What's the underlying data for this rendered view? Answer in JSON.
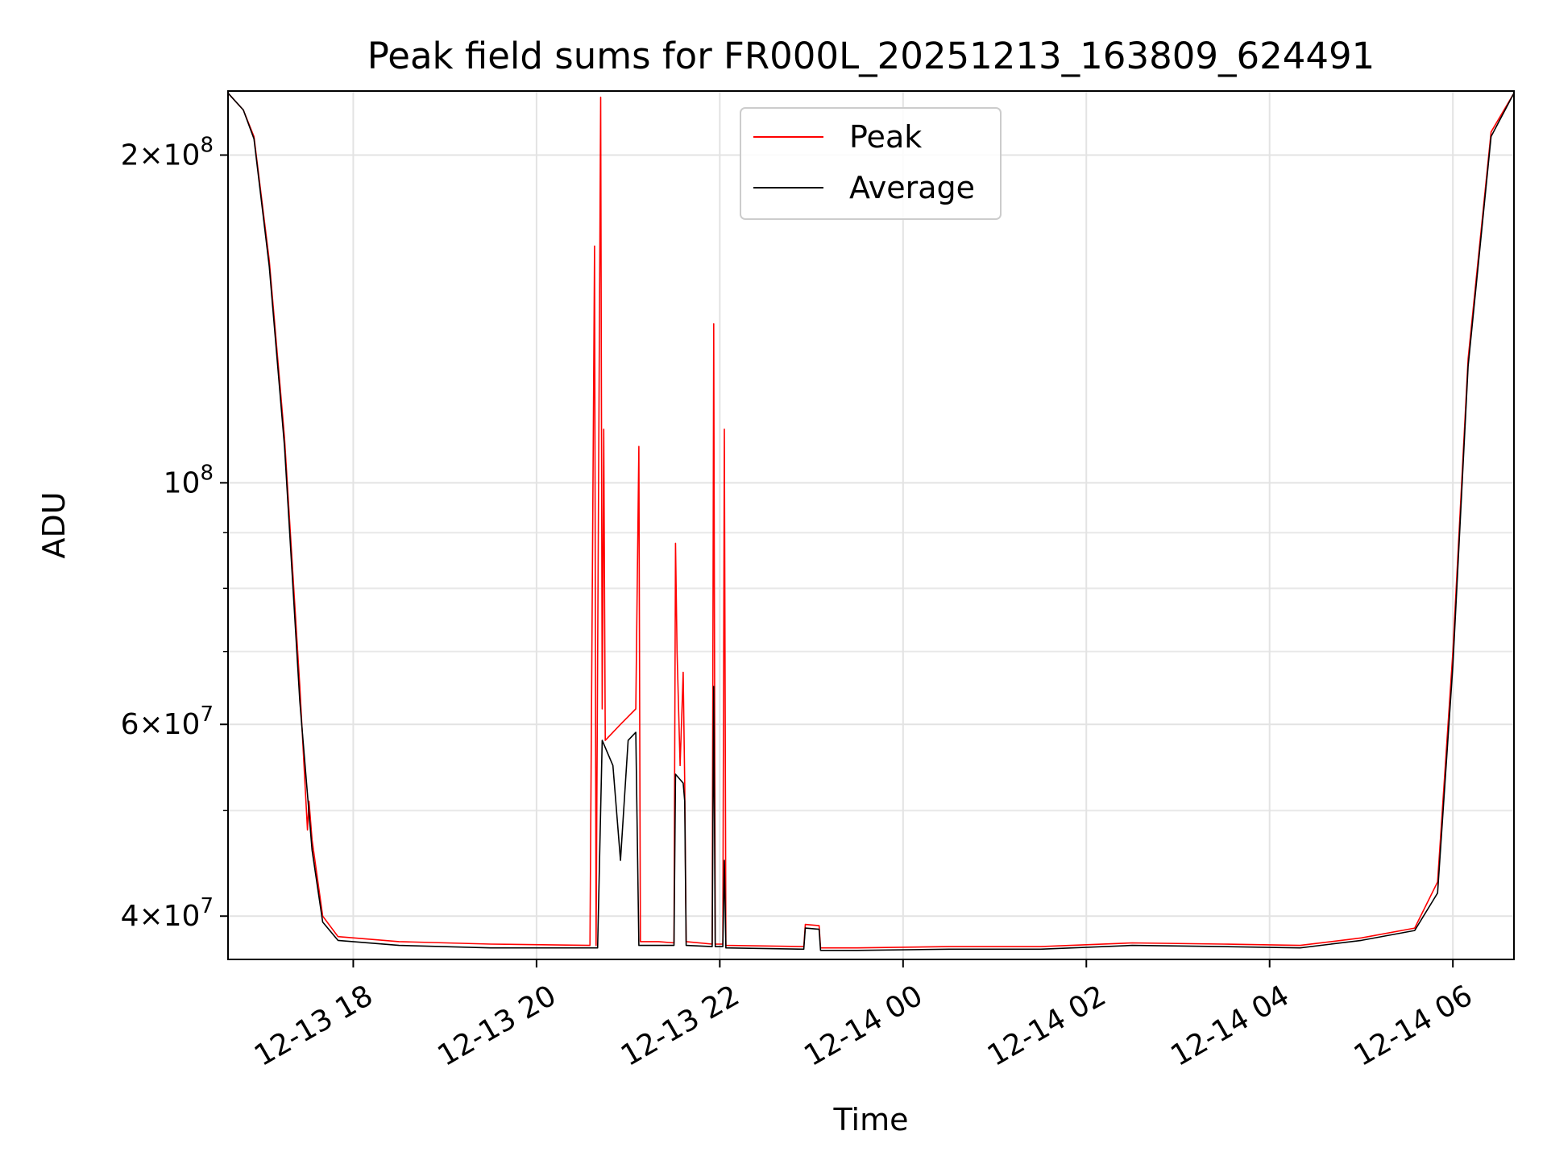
{
  "chart_data": {
    "type": "line",
    "title": "Peak field sums for FR000L_20251213_163809_624491",
    "xlabel": "Time",
    "ylabel": "ADU",
    "y_scale": "log",
    "grid": true,
    "legend_position": "top-center",
    "x_range": [
      "2025-12-13 16:38",
      "2025-12-14 06:40"
    ],
    "ylim": [
      36500000,
      229000000
    ],
    "x_ticks": [
      {
        "value": "2025-12-13 18:00",
        "label": "12-13 18"
      },
      {
        "value": "2025-12-13 20:00",
        "label": "12-13 20"
      },
      {
        "value": "2025-12-13 22:00",
        "label": "12-13 22"
      },
      {
        "value": "2025-12-14 00:00",
        "label": "12-14 00"
      },
      {
        "value": "2025-12-14 02:00",
        "label": "12-14 02"
      },
      {
        "value": "2025-12-14 04:00",
        "label": "12-14 04"
      },
      {
        "value": "2025-12-14 06:00",
        "label": "12-14 06"
      }
    ],
    "y_ticks": [
      {
        "value": 40000000,
        "base": "4",
        "exp": "7"
      },
      {
        "value": 60000000,
        "base": "6",
        "exp": "7"
      },
      {
        "value": 100000000,
        "base": "",
        "exp": "8"
      },
      {
        "value": 200000000,
        "base": "2",
        "exp": "8"
      }
    ],
    "y_minor_ticks": [
      50000000,
      70000000,
      80000000,
      90000000
    ],
    "series": [
      {
        "name": "Peak",
        "color": "#ff0000",
        "points": [
          [
            "2025-12-13 16:38",
            228000000
          ],
          [
            "2025-12-13 16:48",
            220000000
          ],
          [
            "2025-12-13 16:55",
            208000000
          ],
          [
            "2025-12-13 17:05",
            160000000
          ],
          [
            "2025-12-13 17:15",
            110000000
          ],
          [
            "2025-12-13 17:25",
            65000000
          ],
          [
            "2025-12-13 17:30",
            48000000
          ],
          [
            "2025-12-13 17:31",
            51000000
          ],
          [
            "2025-12-13 17:33",
            47000000
          ],
          [
            "2025-12-13 17:40",
            40000000
          ],
          [
            "2025-12-13 17:50",
            38300000
          ],
          [
            "2025-12-13 18:30",
            37900000
          ],
          [
            "2025-12-13 19:30",
            37700000
          ],
          [
            "2025-12-13 20:35",
            37600000
          ],
          [
            "2025-12-13 20:38",
            165000000
          ],
          [
            "2025-12-13 20:39",
            37600000
          ],
          [
            "2025-12-13 20:42",
            226000000
          ],
          [
            "2025-12-13 20:43",
            62000000
          ],
          [
            "2025-12-13 20:44",
            112000000
          ],
          [
            "2025-12-13 20:45",
            58000000
          ],
          [
            "2025-12-13 20:55",
            60000000
          ],
          [
            "2025-12-13 21:05",
            62000000
          ],
          [
            "2025-12-13 21:07",
            108000000
          ],
          [
            "2025-12-13 21:08",
            37900000
          ],
          [
            "2025-12-13 21:20",
            37900000
          ],
          [
            "2025-12-13 21:30",
            37800000
          ],
          [
            "2025-12-13 21:31",
            88000000
          ],
          [
            "2025-12-13 21:32",
            70000000
          ],
          [
            "2025-12-13 21:34",
            55000000
          ],
          [
            "2025-12-13 21:36",
            67000000
          ],
          [
            "2025-12-13 21:37",
            53000000
          ],
          [
            "2025-12-13 21:38",
            37900000
          ],
          [
            "2025-12-13 21:55",
            37700000
          ],
          [
            "2025-12-13 21:56",
            140000000
          ],
          [
            "2025-12-13 21:57",
            37700000
          ],
          [
            "2025-12-13 22:02",
            37700000
          ],
          [
            "2025-12-13 22:03",
            112000000
          ],
          [
            "2025-12-13 22:04",
            37600000
          ],
          [
            "2025-12-13 22:55",
            37500000
          ],
          [
            "2025-12-13 22:56",
            39300000
          ],
          [
            "2025-12-13 23:05",
            39200000
          ],
          [
            "2025-12-13 23:06",
            37400000
          ],
          [
            "2025-12-13 23:30",
            37400000
          ],
          [
            "2025-12-14 00:30",
            37500000
          ],
          [
            "2025-12-14 01:30",
            37500000
          ],
          [
            "2025-12-14 02:30",
            37800000
          ],
          [
            "2025-12-14 03:30",
            37700000
          ],
          [
            "2025-12-14 04:20",
            37600000
          ],
          [
            "2025-12-14 05:00",
            38200000
          ],
          [
            "2025-12-14 05:35",
            39000000
          ],
          [
            "2025-12-14 05:50",
            43000000
          ],
          [
            "2025-12-14 06:00",
            70000000
          ],
          [
            "2025-12-14 06:10",
            130000000
          ],
          [
            "2025-12-14 06:25",
            210000000
          ],
          [
            "2025-12-14 06:40",
            228000000
          ]
        ]
      },
      {
        "name": "Average",
        "color": "#000000",
        "points": [
          [
            "2025-12-13 16:38",
            228000000
          ],
          [
            "2025-12-13 16:48",
            220000000
          ],
          [
            "2025-12-13 16:55",
            207000000
          ],
          [
            "2025-12-13 17:05",
            158000000
          ],
          [
            "2025-12-13 17:15",
            108000000
          ],
          [
            "2025-12-13 17:25",
            63000000
          ],
          [
            "2025-12-13 17:33",
            46000000
          ],
          [
            "2025-12-13 17:40",
            39500000
          ],
          [
            "2025-12-13 17:50",
            38000000
          ],
          [
            "2025-12-13 18:30",
            37600000
          ],
          [
            "2025-12-13 19:30",
            37400000
          ],
          [
            "2025-12-13 20:35",
            37400000
          ],
          [
            "2025-12-13 20:40",
            37400000
          ],
          [
            "2025-12-13 20:43",
            58000000
          ],
          [
            "2025-12-13 20:50",
            55000000
          ],
          [
            "2025-12-13 20:55",
            45000000
          ],
          [
            "2025-12-13 21:00",
            58000000
          ],
          [
            "2025-12-13 21:05",
            59000000
          ],
          [
            "2025-12-13 21:07",
            37600000
          ],
          [
            "2025-12-13 21:30",
            37600000
          ],
          [
            "2025-12-13 21:31",
            54000000
          ],
          [
            "2025-12-13 21:36",
            53000000
          ],
          [
            "2025-12-13 21:37",
            51000000
          ],
          [
            "2025-12-13 21:38",
            37600000
          ],
          [
            "2025-12-13 21:55",
            37500000
          ],
          [
            "2025-12-13 21:56",
            65000000
          ],
          [
            "2025-12-13 21:57",
            37500000
          ],
          [
            "2025-12-13 22:02",
            37500000
          ],
          [
            "2025-12-13 22:03",
            45000000
          ],
          [
            "2025-12-13 22:04",
            37400000
          ],
          [
            "2025-12-13 22:55",
            37300000
          ],
          [
            "2025-12-13 22:56",
            39000000
          ],
          [
            "2025-12-13 23:05",
            38900000
          ],
          [
            "2025-12-13 23:06",
            37200000
          ],
          [
            "2025-12-13 23:30",
            37200000
          ],
          [
            "2025-12-14 00:30",
            37300000
          ],
          [
            "2025-12-14 01:30",
            37300000
          ],
          [
            "2025-12-14 02:30",
            37600000
          ],
          [
            "2025-12-14 03:30",
            37500000
          ],
          [
            "2025-12-14 04:20",
            37400000
          ],
          [
            "2025-12-14 05:00",
            38000000
          ],
          [
            "2025-12-14 05:35",
            38800000
          ],
          [
            "2025-12-14 05:50",
            42000000
          ],
          [
            "2025-12-14 06:00",
            68000000
          ],
          [
            "2025-12-14 06:10",
            128000000
          ],
          [
            "2025-12-14 06:25",
            208000000
          ],
          [
            "2025-12-14 06:40",
            228000000
          ]
        ]
      }
    ]
  }
}
